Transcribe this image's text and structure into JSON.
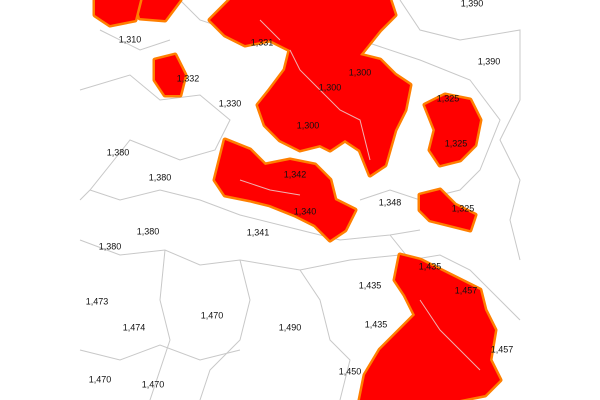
{
  "map": {
    "labels": [
      "1,390",
      "1,310",
      "1,331",
      "1,390",
      "1,300",
      "1,332",
      "1,300",
      "1,330",
      "1,325",
      "1,300",
      "1,325",
      "1,380",
      "1,380",
      "1,342",
      "1,348",
      "1,340",
      "1,325",
      "1,380",
      "1,341",
      "1,380",
      "1,435",
      "1,435",
      "1,457",
      "1,473",
      "1,470",
      "1,474",
      "1,490",
      "1,435",
      "1,457",
      "1,450",
      "1,470",
      "1,470"
    ]
  }
}
